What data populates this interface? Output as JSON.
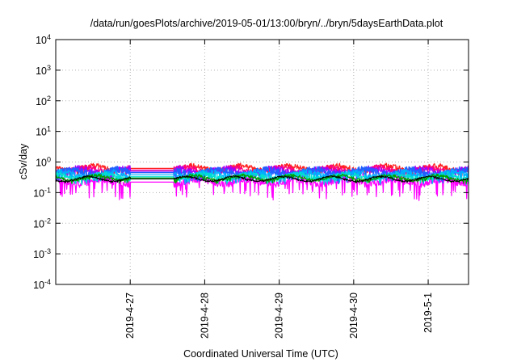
{
  "chart_data": {
    "type": "line",
    "title": "/data/run/goesPlots/archive/2019-05-01/13:00/bryn/../bryn/5daysEarthData.plot",
    "xlabel": "Coordinated Universal Time (UTC)",
    "ylabel": "cSv/day",
    "yscale": "log",
    "ylim": [
      0.0001,
      10000
    ],
    "y_tick_labels": [
      {
        "value": 0.0001,
        "base": "10",
        "exp": "-4"
      },
      {
        "value": 0.001,
        "base": "10",
        "exp": "-3"
      },
      {
        "value": 0.01,
        "base": "10",
        "exp": "-2"
      },
      {
        "value": 0.1,
        "base": "10",
        "exp": "-1"
      },
      {
        "value": 1,
        "base": "10",
        "exp": "0"
      },
      {
        "value": 10,
        "base": "10",
        "exp": "1"
      },
      {
        "value": 100,
        "base": "10",
        "exp": "2"
      },
      {
        "value": 1000,
        "base": "10",
        "exp": "3"
      },
      {
        "value": 10000,
        "base": "10",
        "exp": "4"
      }
    ],
    "xlim": [
      "2019-04-26T00:00",
      "2019-05-01T13:00"
    ],
    "x_ticks": [
      {
        "value": "2019-04-27T00:00",
        "label": "2019-4-27"
      },
      {
        "value": "2019-04-28T00:00",
        "label": "2019-4-28"
      },
      {
        "value": "2019-04-29T00:00",
        "label": "2019-4-29"
      },
      {
        "value": "2019-04-30T00:00",
        "label": "2019-4-30"
      },
      {
        "value": "2019-05-01T00:00",
        "label": "2019-5-1"
      }
    ],
    "grid": true,
    "data_gap": [
      "2019-04-27T00:00",
      "2019-04-27T14:00"
    ],
    "series": [
      {
        "color": "#ff00ff",
        "level": 0.22,
        "spread": 0.55,
        "noise": 0.4,
        "width": 1.2
      },
      {
        "color": "#ff2020",
        "level": 0.62,
        "spread": 0.2,
        "noise": 0.25,
        "width": 1.2
      },
      {
        "color": "#ff0080",
        "level": 0.55,
        "spread": 0.2,
        "noise": 0.25,
        "width": 1.2
      },
      {
        "color": "#a000ff",
        "level": 0.5,
        "spread": 0.25,
        "noise": 0.3,
        "width": 1.2
      },
      {
        "color": "#2060ff",
        "level": 0.45,
        "spread": 0.3,
        "noise": 0.35,
        "width": 1.4
      },
      {
        "color": "#00b0ff",
        "level": 0.38,
        "spread": 0.25,
        "noise": 0.3,
        "width": 1.2
      },
      {
        "color": "#00e0d0",
        "level": 0.33,
        "spread": 0.2,
        "noise": 0.25,
        "width": 1.2
      },
      {
        "color": "#00a000",
        "level": 0.3,
        "spread": 0.12,
        "noise": 0.15,
        "width": 1.2
      },
      {
        "color": "#000000",
        "level": 0.28,
        "spread": 0.05,
        "noise": 0.08,
        "width": 1.0
      }
    ]
  }
}
